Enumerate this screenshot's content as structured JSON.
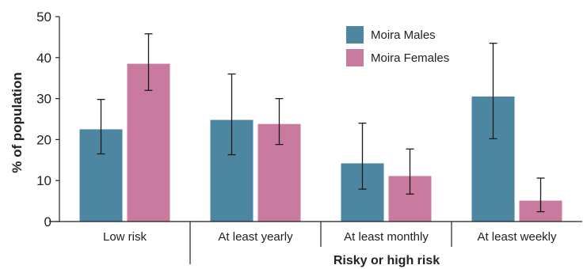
{
  "chart_data": {
    "type": "bar",
    "ylabel": "% of population",
    "ylim": [
      0,
      50
    ],
    "yticks": [
      0,
      10,
      20,
      30,
      40,
      50
    ],
    "categories": [
      "Low risk",
      "At least yearly",
      "At least monthly",
      "At least weekly"
    ],
    "category_group": {
      "label": "Risky or high risk",
      "members": [
        "At least yearly",
        "At least monthly",
        "At least weekly"
      ]
    },
    "series": [
      {
        "name": "Moira Males",
        "color": "#4d86a0",
        "values": [
          22.5,
          24.8,
          14.2,
          30.5
        ],
        "error_low": [
          16.5,
          16.3,
          7.9,
          20.2
        ],
        "error_high": [
          29.8,
          36.0,
          24.0,
          43.5
        ]
      },
      {
        "name": "Moira Females",
        "color": "#c97b9f",
        "values": [
          38.5,
          23.8,
          11.1,
          5.1
        ],
        "error_low": [
          32.0,
          18.8,
          6.7,
          2.4
        ],
        "error_high": [
          45.8,
          30.0,
          17.7,
          10.6
        ]
      }
    ],
    "legend_position": "top-right",
    "grid": false
  }
}
